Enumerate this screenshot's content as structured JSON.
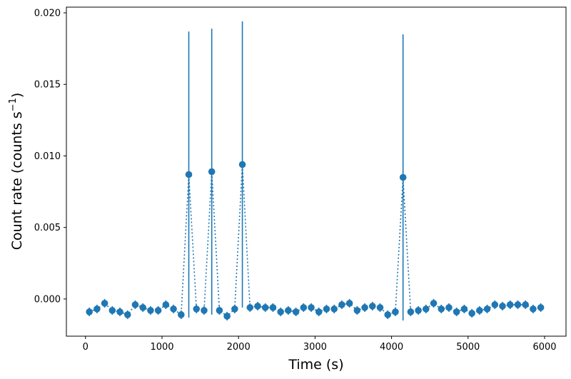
{
  "chart_data": {
    "type": "scatter",
    "title": "",
    "xlabel": "Time (s)",
    "ylabel_main": "Count rate (counts s",
    "ylabel_sup": "−1",
    "ylabel_close": ")",
    "xlim": [
      -250,
      6280
    ],
    "ylim": [
      -0.0026,
      0.0204
    ],
    "x_ticks": [
      0,
      1000,
      2000,
      3000,
      4000,
      5000,
      6000
    ],
    "x_tick_labels": [
      "0",
      "1000",
      "2000",
      "3000",
      "4000",
      "5000",
      "6000"
    ],
    "y_ticks": [
      0.0,
      0.005,
      0.01,
      0.015,
      0.02
    ],
    "y_tick_labels": [
      "0.000",
      "0.005",
      "0.010",
      "0.015",
      "0.020"
    ],
    "grid": false,
    "color": "#1f77b4",
    "line_style": "dotted",
    "x": [
      50,
      150,
      250,
      350,
      450,
      550,
      650,
      750,
      850,
      950,
      1050,
      1150,
      1250,
      1350,
      1450,
      1550,
      1650,
      1750,
      1850,
      1950,
      2050,
      2150,
      2250,
      2350,
      2450,
      2550,
      2650,
      2750,
      2850,
      2950,
      3050,
      3150,
      3250,
      3350,
      3450,
      3550,
      3650,
      3750,
      3850,
      3950,
      4050,
      4150,
      4250,
      4350,
      4450,
      4550,
      4650,
      4750,
      4850,
      4950,
      5050,
      5150,
      5250,
      5350,
      5450,
      5550,
      5650,
      5750,
      5850,
      5950
    ],
    "y": [
      -0.0009,
      -0.0007,
      -0.0003,
      -0.0008,
      -0.0009,
      -0.0011,
      -0.0004,
      -0.0006,
      -0.0008,
      -0.0008,
      -0.0004,
      -0.0007,
      -0.0011,
      0.0087,
      -0.0007,
      -0.0008,
      0.0089,
      -0.0008,
      -0.0012,
      -0.0007,
      0.0094,
      -0.0006,
      -0.0005,
      -0.0006,
      -0.0006,
      -0.0009,
      -0.0008,
      -0.0009,
      -0.0006,
      -0.0006,
      -0.0009,
      -0.0007,
      -0.0007,
      -0.0004,
      -0.0003,
      -0.0008,
      -0.0006,
      -0.0005,
      -0.0006,
      -0.0011,
      -0.0009,
      0.0085,
      -0.0009,
      -0.0008,
      -0.0007,
      -0.0003,
      -0.0007,
      -0.0006,
      -0.0009,
      -0.0007,
      -0.001,
      -0.0008,
      -0.0007,
      -0.0004,
      -0.0005,
      -0.0004,
      -0.0004,
      -0.0004,
      -0.0007,
      -0.0006
    ],
    "yerr": [
      0.0003,
      0.0003,
      0.0003,
      0.0003,
      0.0003,
      0.0003,
      0.0003,
      0.0003,
      0.0003,
      0.0003,
      0.0003,
      0.0003,
      0.0003,
      0.01,
      0.0003,
      0.0003,
      0.01,
      0.0003,
      0.0003,
      0.0003,
      0.01,
      0.0003,
      0.0003,
      0.0003,
      0.0003,
      0.0003,
      0.0003,
      0.0003,
      0.0003,
      0.0003,
      0.0003,
      0.0003,
      0.0003,
      0.0003,
      0.0003,
      0.0003,
      0.0003,
      0.0003,
      0.0003,
      0.0003,
      0.0003,
      0.01,
      0.0003,
      0.0003,
      0.0003,
      0.0003,
      0.0003,
      0.0003,
      0.0003,
      0.0003,
      0.0003,
      0.0003,
      0.0003,
      0.0003,
      0.0003,
      0.0003,
      0.0003,
      0.0003,
      0.0003,
      0.0003
    ]
  }
}
